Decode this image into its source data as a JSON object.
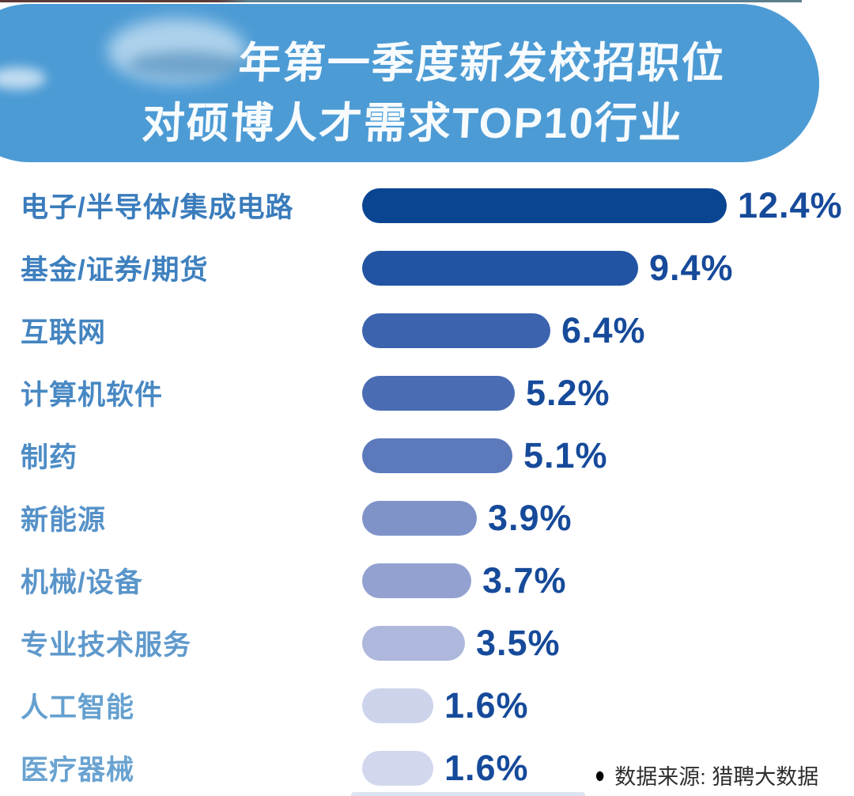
{
  "banner": {
    "title_line1": "年第一季度新发校招职位",
    "title_line2": "对硕博人才需求TOP10行业",
    "bg_color": "#4c9bd5",
    "text_color": "#ffffff",
    "note": "year before 年 is blurred out"
  },
  "footer": {
    "bullet": "●",
    "source_text": "数据来源: 猎聘大数据"
  },
  "chart_data": {
    "type": "bar",
    "orientation": "horizontal",
    "title": "年第一季度新发校招职位 对硕博人才需求TOP10行业",
    "unit": "%",
    "xlim": [
      0,
      12.4
    ],
    "grid": false,
    "legend": false,
    "categories": [
      "电子/半导体/集成电路",
      "基金/证券/期货",
      "互联网",
      "计算机软件",
      "制药",
      "新能源",
      "机械/设备",
      "专业技术服务",
      "人工智能",
      "医疗器械"
    ],
    "values": [
      12.4,
      9.4,
      6.4,
      5.2,
      5.1,
      3.9,
      3.7,
      3.5,
      1.6,
      1.6
    ],
    "value_labels": [
      "12.4%",
      "9.4%",
      "6.4%",
      "5.2%",
      "5.1%",
      "3.9%",
      "3.7%",
      "3.5%",
      "1.6%",
      "1.6%"
    ],
    "bar_colors": [
      "#0a4592",
      "#2254a3",
      "#3c63ae",
      "#4a6cb3",
      "#5b79bb",
      "#8093c9",
      "#93a1d0",
      "#aeb8dc",
      "#ccd3eb",
      "#d2d7ed"
    ],
    "label_colors": [
      "#3a7cbc",
      "#3e80be",
      "#4384c0",
      "#4888c3",
      "#4d8cc5",
      "#5591c8",
      "#5a95ca",
      "#5f99cc",
      "#65a0cf",
      "#6aa3d1"
    ],
    "value_color": "#164a9a",
    "source": "数据来源: 猎聘大数据"
  }
}
